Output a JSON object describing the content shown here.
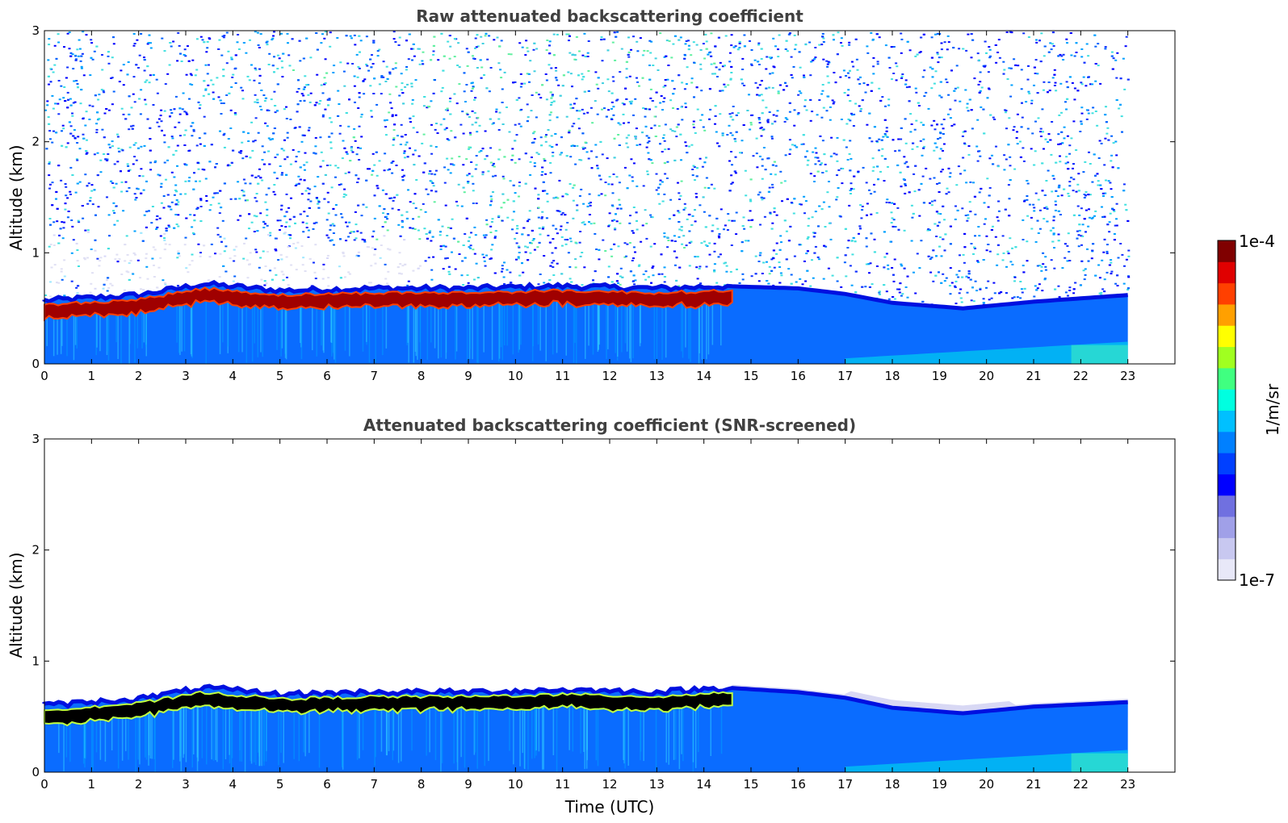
{
  "chart_data": [
    {
      "type": "heatmap",
      "title": "Raw attenuated backscattering coefficient",
      "xlabel": "",
      "ylabel": "Altitude (km)",
      "xlim": [
        0,
        24
      ],
      "ylim": [
        0,
        3
      ],
      "xticks": [
        "0",
        "1",
        "2",
        "3",
        "4",
        "5",
        "6",
        "7",
        "8",
        "9",
        "10",
        "11",
        "12",
        "13",
        "14",
        "15",
        "16",
        "17",
        "18",
        "19",
        "20",
        "21",
        "22",
        "23"
      ],
      "yticks": [
        "0",
        "1",
        "2",
        "3"
      ],
      "data_end_time": 23,
      "layer_top_km": [
        {
          "t": 0,
          "z": 0.57
        },
        {
          "t": 2,
          "z": 0.62
        },
        {
          "t": 3.4,
          "z": 0.72
        },
        {
          "t": 5,
          "z": 0.66
        },
        {
          "t": 7,
          "z": 0.68
        },
        {
          "t": 9,
          "z": 0.68
        },
        {
          "t": 11,
          "z": 0.7
        },
        {
          "t": 13,
          "z": 0.68
        },
        {
          "t": 14.5,
          "z": 0.7
        },
        {
          "t": 16,
          "z": 0.68
        },
        {
          "t": 17,
          "z": 0.63
        },
        {
          "t": 18,
          "z": 0.55
        },
        {
          "t": 19.5,
          "z": 0.5
        },
        {
          "t": 21,
          "z": 0.56
        },
        {
          "t": 23,
          "z": 0.62
        }
      ]
    },
    {
      "type": "heatmap",
      "title": "Attenuated backscattering coefficient (SNR-screened)",
      "xlabel": "Time (UTC)",
      "ylabel": "Altitude (km)",
      "xlim": [
        0,
        24
      ],
      "ylim": [
        0,
        3
      ],
      "xticks": [
        "0",
        "1",
        "2",
        "3",
        "4",
        "5",
        "6",
        "7",
        "8",
        "9",
        "10",
        "11",
        "12",
        "13",
        "14",
        "15",
        "16",
        "17",
        "18",
        "19",
        "20",
        "21",
        "22",
        "23"
      ],
      "yticks": [
        "0",
        "1",
        "2",
        "3"
      ],
      "data_end_time": 23,
      "layer_top_km": [
        {
          "t": 0,
          "z": 0.6
        },
        {
          "t": 2,
          "z": 0.66
        },
        {
          "t": 3.4,
          "z": 0.76
        },
        {
          "t": 5,
          "z": 0.7
        },
        {
          "t": 7,
          "z": 0.72
        },
        {
          "t": 9,
          "z": 0.72
        },
        {
          "t": 11,
          "z": 0.74
        },
        {
          "t": 13,
          "z": 0.72
        },
        {
          "t": 14.5,
          "z": 0.76
        },
        {
          "t": 16,
          "z": 0.72
        },
        {
          "t": 17,
          "z": 0.67
        },
        {
          "t": 18,
          "z": 0.58
        },
        {
          "t": 19.5,
          "z": 0.53
        },
        {
          "t": 21,
          "z": 0.59
        },
        {
          "t": 23,
          "z": 0.63
        }
      ]
    }
  ],
  "colorbar": {
    "label": "1/m/sr",
    "max_label": "1e-4",
    "min_label": "1e-7",
    "colors": [
      "#e8e8f8",
      "#c8c8f0",
      "#a0a0e8",
      "#7070e0",
      "#0000ff",
      "#0040ff",
      "#0080ff",
      "#00c0ff",
      "#00ffe0",
      "#40ff80",
      "#a0ff20",
      "#ffff00",
      "#ffa000",
      "#ff4000",
      "#e00000",
      "#800000"
    ]
  }
}
